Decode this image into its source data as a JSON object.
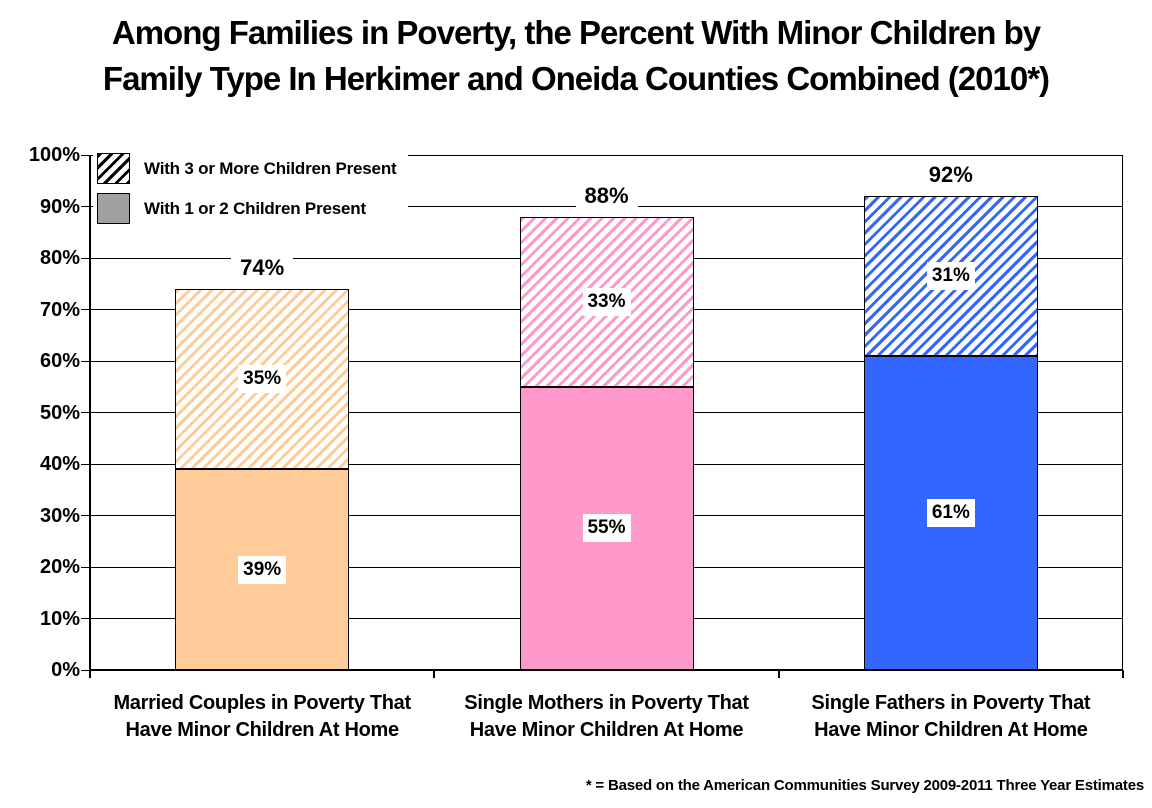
{
  "title": {
    "line1": "Among Families in Poverty, the Percent With Minor Children by",
    "line2": "Family Type In Herkimer and Oneida Counties Combined (2010*)"
  },
  "footnote": "* = Based on the American Communities Survey 2009-2011 Three Year Estimates",
  "legend": {
    "items": [
      {
        "label": "With 3 or More Children Present",
        "swatch": "hatch",
        "swatch_color": "#000000"
      },
      {
        "label": "With 1 or 2 Children Present",
        "swatch": "solid",
        "swatch_color": "#A0A0A0"
      }
    ]
  },
  "colors": {
    "axis": "#000000",
    "gridline": "#000000",
    "label_text": "#000000",
    "label_background": "#FFFFFF"
  },
  "chart_data": {
    "type": "bar",
    "variant": "stacked-column",
    "title": "Among Families in Poverty, the Percent With Minor Children by Family Type In Herkimer and Oneida Counties Combined (2010*)",
    "categories": [
      [
        "Married Couples in Poverty That",
        "Have Minor Children At Home"
      ],
      [
        "Single Mothers in Poverty That",
        "Have Minor Children At Home"
      ],
      [
        "Single Fathers in Poverty That",
        "Have Minor Children At Home"
      ]
    ],
    "series": [
      {
        "name": "With 1 or 2 Children Present",
        "style": "solid",
        "values": [
          39,
          55,
          61
        ]
      },
      {
        "name": "With 3 or More Children Present",
        "style": "hatched",
        "values": [
          35,
          33,
          31
        ]
      }
    ],
    "totals": [
      74,
      88,
      92
    ],
    "bar_colors": [
      "#FFCC99",
      "#FF99CC",
      "#3366FF"
    ],
    "value_suffix": "%",
    "ylim": [
      0,
      100
    ],
    "ytick_step": 10,
    "ytick_labels": [
      "0%",
      "10%",
      "20%",
      "30%",
      "40%",
      "50%",
      "60%",
      "70%",
      "80%",
      "90%",
      "100%"
    ],
    "grid": true,
    "legend_position": "inside-top-left"
  }
}
